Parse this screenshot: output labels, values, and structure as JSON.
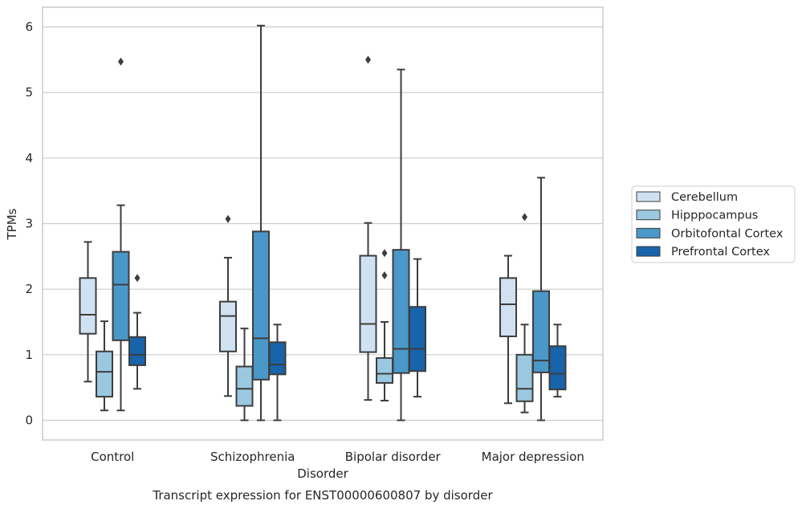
{
  "chart_data": {
    "type": "boxplot",
    "caption": "Transcript expression for ENST00000600807 by disorder",
    "xlabel": "Disorder",
    "ylabel": "TPMs",
    "ylim": [
      -0.3,
      6.3
    ],
    "yticks": [
      0,
      1,
      2,
      3,
      4,
      5,
      6
    ],
    "categories": [
      "Control",
      "Schizophrenia",
      "Bipolar disorder",
      "Major depression"
    ],
    "grid": "horizontal",
    "legend_position": "right",
    "series": [
      {
        "name": "Cerebellum",
        "color": "#d0e1f2",
        "boxes": [
          {
            "whislo": 0.59,
            "q1": 1.32,
            "med": 1.61,
            "q3": 2.17,
            "whishi": 2.72,
            "fliers": []
          },
          {
            "whislo": 0.37,
            "q1": 1.05,
            "med": 1.59,
            "q3": 1.81,
            "whishi": 2.48,
            "fliers": [
              3.07
            ]
          },
          {
            "whislo": 0.31,
            "q1": 1.04,
            "med": 1.47,
            "q3": 2.51,
            "whishi": 3.01,
            "fliers": [
              5.5
            ]
          },
          {
            "whislo": 0.26,
            "q1": 1.28,
            "med": 1.77,
            "q3": 2.17,
            "whishi": 2.51,
            "fliers": []
          }
        ]
      },
      {
        "name": "Hipppocampus",
        "color": "#9ac8e0",
        "boxes": [
          {
            "whislo": 0.15,
            "q1": 0.36,
            "med": 0.74,
            "q3": 1.05,
            "whishi": 1.51,
            "fliers": []
          },
          {
            "whislo": 0.0,
            "q1": 0.22,
            "med": 0.48,
            "q3": 0.82,
            "whishi": 1.4,
            "fliers": []
          },
          {
            "whislo": 0.3,
            "q1": 0.57,
            "med": 0.71,
            "q3": 0.95,
            "whishi": 1.5,
            "fliers": [
              2.21,
              2.55
            ]
          },
          {
            "whislo": 0.12,
            "q1": 0.29,
            "med": 0.48,
            "q3": 1.0,
            "whishi": 1.46,
            "fliers": [
              3.1
            ]
          }
        ]
      },
      {
        "name": "Orbitofontal Cortex",
        "color": "#4a98c9",
        "boxes": [
          {
            "whislo": 0.15,
            "q1": 1.22,
            "med": 2.07,
            "q3": 2.57,
            "whishi": 3.28,
            "fliers": [
              5.47
            ]
          },
          {
            "whislo": 0.0,
            "q1": 0.62,
            "med": 1.25,
            "q3": 2.88,
            "whishi": 6.02,
            "fliers": []
          },
          {
            "whislo": 0.0,
            "q1": 0.72,
            "med": 1.09,
            "q3": 2.6,
            "whishi": 5.35,
            "fliers": []
          },
          {
            "whislo": 0.0,
            "q1": 0.73,
            "med": 0.91,
            "q3": 1.97,
            "whishi": 3.7,
            "fliers": []
          }
        ]
      },
      {
        "name": "Prefrontal Cortex",
        "color": "#1764ab",
        "boxes": [
          {
            "whislo": 0.48,
            "q1": 0.84,
            "med": 1.0,
            "q3": 1.27,
            "whishi": 1.64,
            "fliers": [
              2.17
            ]
          },
          {
            "whislo": 0.0,
            "q1": 0.7,
            "med": 0.85,
            "q3": 1.19,
            "whishi": 1.46,
            "fliers": []
          },
          {
            "whislo": 0.36,
            "q1": 0.75,
            "med": 1.09,
            "q3": 1.73,
            "whishi": 2.46,
            "fliers": []
          },
          {
            "whislo": 0.36,
            "q1": 0.47,
            "med": 0.71,
            "q3": 1.13,
            "whishi": 1.46,
            "fliers": []
          }
        ]
      }
    ]
  }
}
